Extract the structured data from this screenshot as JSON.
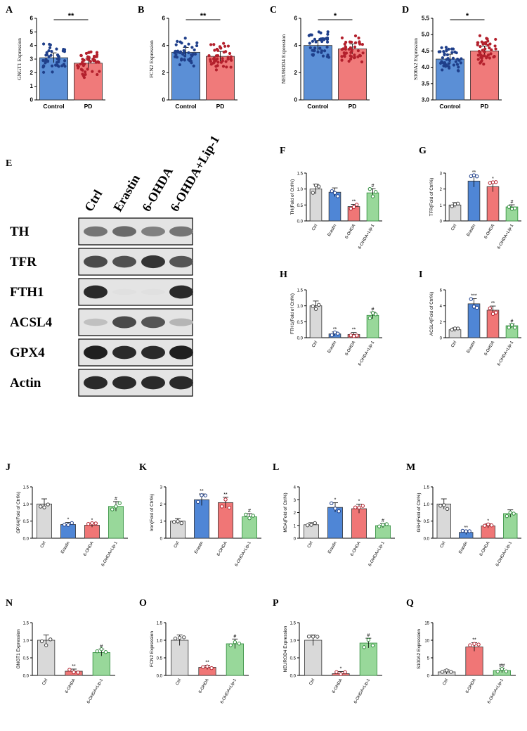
{
  "colors": {
    "control_blue": "#5b8fd6",
    "pd_red": "#f07a7a",
    "ctrl_gray": "#d9d9d9",
    "erastin_blue": "#4f86d6",
    "ohda_red": "#f07676",
    "lip_green": "#98d89a",
    "dark_blue_dots": "#1f3f8a",
    "dark_red_dots": "#b3202c",
    "gray_dots": "#444444",
    "green_edge": "#2e8b3a"
  },
  "blot": {
    "label": "E",
    "lanes": [
      "Ctrl",
      "Erastin",
      "6-OHDA",
      "6-OHDA+Lip-1"
    ],
    "proteins": [
      "TH",
      "TFR",
      "FTH1",
      "ACSL4",
      "GPX4",
      "Actin"
    ],
    "band_intensity": [
      [
        0.55,
        0.6,
        0.5,
        0.55
      ],
      [
        0.75,
        0.72,
        0.85,
        0.7
      ],
      [
        0.9,
        0.05,
        0.05,
        0.9
      ],
      [
        0.2,
        0.75,
        0.7,
        0.25
      ],
      [
        0.95,
        0.9,
        0.9,
        0.95
      ],
      [
        0.9,
        0.9,
        0.9,
        0.9
      ]
    ]
  },
  "chart_data": [
    {
      "panel": "A",
      "type": "bar",
      "ylabel": "GNGT1 Expression",
      "ylim": [
        0,
        6
      ],
      "yticks": [
        "0",
        "1",
        "2",
        "3",
        "4",
        "5",
        "6"
      ],
      "categories": [
        "Control",
        "PD"
      ],
      "values": [
        3.1,
        2.7
      ],
      "sig": [
        {
          "from": 0,
          "to": 1,
          "text": "**"
        }
      ]
    },
    {
      "panel": "B",
      "type": "bar",
      "ylabel": "FCN2 Expression",
      "ylim": [
        0,
        6
      ],
      "yticks": [
        "0",
        "2",
        "4",
        "6"
      ],
      "categories": [
        "Control",
        "PD"
      ],
      "values": [
        3.5,
        3.2
      ],
      "sig": [
        {
          "from": 0,
          "to": 1,
          "text": "**"
        }
      ]
    },
    {
      "panel": "C",
      "type": "bar",
      "ylabel": "NEUROD4 Expression",
      "ylim": [
        0,
        6
      ],
      "yticks": [
        "0",
        "2",
        "4",
        "6"
      ],
      "categories": [
        "Control",
        "PD"
      ],
      "values": [
        4.0,
        3.75
      ],
      "sig": [
        {
          "from": 0,
          "to": 1,
          "text": "*"
        }
      ]
    },
    {
      "panel": "D",
      "type": "bar",
      "ylabel": "S100A2 Expression",
      "ylim": [
        3.0,
        5.5
      ],
      "yticks": [
        "3.0",
        "3.5",
        "4.0",
        "4.5",
        "5.0",
        "5.5"
      ],
      "categories": [
        "Control",
        "PD"
      ],
      "values": [
        4.25,
        4.5
      ],
      "sig": [
        {
          "from": 0,
          "to": 1,
          "text": "*"
        }
      ]
    },
    {
      "panel": "F",
      "type": "bar",
      "ylabel": "TH(Fold of Ctrl%)",
      "ylim": [
        0,
        1.5
      ],
      "yticks": [
        "0.0",
        "0.5",
        "1.0",
        "1.5"
      ],
      "categories": [
        "Ctrl",
        "Erastin",
        "6-OHDA",
        "6-OHDA+Lip-1"
      ],
      "values": [
        1.0,
        0.9,
        0.45,
        0.88
      ],
      "stars": [
        "",
        "",
        "**",
        "#"
      ]
    },
    {
      "panel": "G",
      "type": "bar",
      "ylabel": "TFR(Fold of Ctrl%)",
      "ylim": [
        0,
        3
      ],
      "yticks": [
        "0",
        "1",
        "2",
        "3"
      ],
      "categories": [
        "Ctrl",
        "Erastin",
        "6-OHDA",
        "6-OHDA+Lip-1"
      ],
      "values": [
        1.0,
        2.5,
        2.15,
        0.88
      ],
      "stars": [
        "",
        "**",
        "*",
        "#"
      ]
    },
    {
      "panel": "H",
      "type": "bar",
      "ylabel": "FTH1(Fold of Ctrl%)",
      "ylim": [
        0,
        1.5
      ],
      "yticks": [
        "0.0",
        "0.5",
        "1.0",
        "1.5"
      ],
      "categories": [
        "Ctrl",
        "Erastin",
        "6-OHDA",
        "6-OHDA+Lip-1"
      ],
      "values": [
        1.0,
        0.12,
        0.1,
        0.7
      ],
      "stars": [
        "",
        "**",
        "**",
        "#"
      ]
    },
    {
      "panel": "I",
      "type": "bar",
      "ylabel": "ACSL4(Fold of Ctrl%)",
      "ylim": [
        0,
        6
      ],
      "yticks": [
        "0",
        "2",
        "4",
        "6"
      ],
      "categories": [
        "Ctrl",
        "Erastin",
        "6-OHDA",
        "6-OHDA+Lip-1"
      ],
      "values": [
        1.0,
        4.25,
        3.45,
        1.5
      ],
      "stars": [
        "",
        "***",
        "**",
        "#"
      ]
    },
    {
      "panel": "J",
      "type": "bar",
      "ylabel": "GPX4(Fold of Ctrl%)",
      "ylim": [
        0,
        1.5
      ],
      "yticks": [
        "0.0",
        "0.5",
        "1.0",
        "1.5"
      ],
      "categories": [
        "Ctrl",
        "Erastin",
        "6-OHDA",
        "6-OHDA+Lip-1"
      ],
      "values": [
        1.0,
        0.4,
        0.38,
        0.93
      ],
      "stars": [
        "",
        "*",
        "*",
        "#"
      ]
    },
    {
      "panel": "K",
      "type": "bar",
      "ylabel": "Iron(Fold of Ctrl%)",
      "ylim": [
        0,
        3
      ],
      "yticks": [
        "0",
        "1",
        "2",
        "3"
      ],
      "categories": [
        "Ctrl",
        "Erastin",
        "6-OHDA",
        "6-OHDA+Lip-1"
      ],
      "values": [
        1.0,
        2.25,
        2.08,
        1.25
      ],
      "stars": [
        "",
        "**",
        "**",
        "#"
      ]
    },
    {
      "panel": "L",
      "type": "bar",
      "ylabel": "MDA(Fold of Ctrl%)",
      "ylim": [
        0,
        4
      ],
      "yticks": [
        "0",
        "1",
        "2",
        "3",
        "4"
      ],
      "categories": [
        "Ctrl",
        "Erastin",
        "6-OHDA",
        "6-OHDA+Lip-1"
      ],
      "values": [
        1.05,
        2.4,
        2.3,
        0.98
      ],
      "stars": [
        "",
        "*",
        "*",
        "#"
      ]
    },
    {
      "panel": "M",
      "type": "bar",
      "ylabel": "GSH(Fold of Ctrl%)",
      "ylim": [
        0,
        1.5
      ],
      "yticks": [
        "0.0",
        "0.5",
        "1.0",
        "1.5"
      ],
      "categories": [
        "Ctrl",
        "Erastin",
        "6-OHDA",
        "6-OHDA+Lip-1"
      ],
      "values": [
        1.0,
        0.17,
        0.36,
        0.72
      ],
      "stars": [
        "",
        "**",
        "*",
        ""
      ]
    },
    {
      "panel": "N",
      "type": "bar",
      "ylabel": "GNGT1 Expression",
      "ylim": [
        0,
        1.5
      ],
      "yticks": [
        "0.0",
        "0.5",
        "1.0",
        "1.5"
      ],
      "categories": [
        "Ctrl",
        "6-OHDA",
        "6-OHDA+Lip-1"
      ],
      "values": [
        1.0,
        0.12,
        0.65
      ],
      "stars": [
        "",
        "**",
        "#"
      ]
    },
    {
      "panel": "O",
      "type": "bar",
      "ylabel": "FCN2 Expression",
      "ylim": [
        0,
        1.5
      ],
      "yticks": [
        "0.0",
        "0.5",
        "1.0",
        "1.5"
      ],
      "categories": [
        "Ctrl",
        "6-OHDA",
        "6-OHDA+Lip-1"
      ],
      "values": [
        1.0,
        0.23,
        0.9
      ],
      "stars": [
        "",
        "**",
        "#"
      ]
    },
    {
      "panel": "P",
      "type": "bar",
      "ylabel": "NEUROD4 Expression",
      "ylim": [
        0,
        1.5
      ],
      "yticks": [
        "0.0",
        "0.5",
        "1.0",
        "1.5"
      ],
      "categories": [
        "Ctrl",
        "6-OHDA",
        "6-OHDA+Lip-1"
      ],
      "values": [
        1.0,
        0.05,
        0.92
      ],
      "stars": [
        "",
        "*",
        "#"
      ]
    },
    {
      "panel": "Q",
      "type": "bar",
      "ylabel": "S100A2 Expression",
      "ylim": [
        0,
        15
      ],
      "yticks": [
        "0",
        "5",
        "10",
        "15"
      ],
      "categories": [
        "Ctrl",
        "6-OHDA",
        "6-OHDA+Lip-1"
      ],
      "values": [
        1.0,
        8.1,
        1.4
      ],
      "stars": [
        "",
        "**",
        "##"
      ]
    }
  ]
}
